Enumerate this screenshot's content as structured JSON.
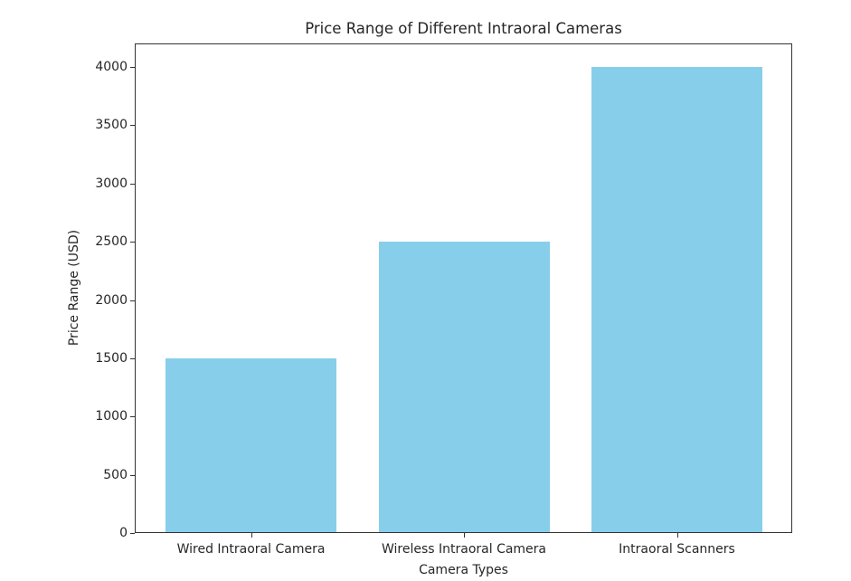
{
  "chart_data": {
    "type": "bar",
    "title": "Price Range of Different Intraoral Cameras",
    "xlabel": "Camera Types",
    "ylabel": "Price Range (USD)",
    "categories": [
      "Wired Intraoral Camera",
      "Wireless Intraoral Camera",
      "Intraoral Scanners"
    ],
    "values": [
      1500,
      2500,
      4000
    ],
    "ylim": [
      0,
      4200
    ],
    "yticks": [
      0,
      500,
      1000,
      1500,
      2000,
      2500,
      3000,
      3500,
      4000
    ],
    "ytick_labels": [
      "0",
      "500",
      "1000",
      "1500",
      "2000",
      "2500",
      "3000",
      "3500",
      "4000"
    ],
    "bar_color": "#87ceeb",
    "grid": false,
    "legend": null
  }
}
